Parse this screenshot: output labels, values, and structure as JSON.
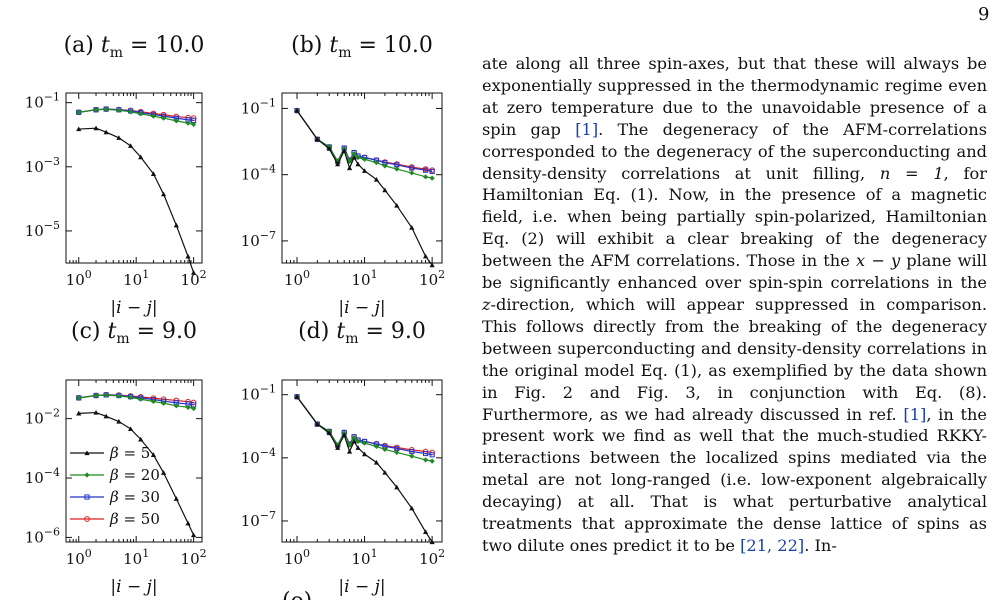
{
  "page_number": "9",
  "figure_caption_fragment": "(e)",
  "panels": [
    {
      "id": "a",
      "title": "(a) t_m = 10.0",
      "label": "(a)",
      "param": "10.0",
      "yticks": [
        {
          "exp": "-1"
        },
        {
          "exp": "-3"
        },
        {
          "exp": "-5"
        }
      ]
    },
    {
      "id": "b",
      "title": "(b) t_m = 10.0",
      "label": "(b)",
      "param": "10.0",
      "yticks": [
        {
          "exp": "-1"
        },
        {
          "exp": "-4"
        },
        {
          "exp": "-7"
        }
      ]
    },
    {
      "id": "c",
      "title": "(c) t_m = 9.0",
      "label": "(c)",
      "param": "9.0",
      "yticks": [
        {
          "exp": "-2"
        },
        {
          "exp": "-4"
        },
        {
          "exp": "-6"
        }
      ]
    },
    {
      "id": "d",
      "title": "(d) t_m = 9.0",
      "label": "(d)",
      "param": "9.0",
      "yticks": [
        {
          "exp": "-1"
        },
        {
          "exp": "-4"
        },
        {
          "exp": "-7"
        }
      ]
    }
  ],
  "xaxis_label": "|i − j|",
  "xtick_exps": [
    "0",
    "1",
    "2"
  ],
  "legend": [
    {
      "label": "β = 5",
      "beta": "5",
      "color": "#111111",
      "marker": "triangle"
    },
    {
      "label": "β = 20",
      "beta": "20",
      "color": "#1f8a1f",
      "marker": "diamond"
    },
    {
      "label": "β = 30",
      "beta": "30",
      "color": "#2233cc",
      "marker": "square"
    },
    {
      "label": "β = 50",
      "beta": "50",
      "color": "#dd2222",
      "marker": "circle"
    }
  ],
  "body_text": {
    "s1": "ate along all three spin-axes, but that these will always be exponentially suppressed in the thermodynamic regime even at zero temperature due to the unavoidable presence of a spin gap ",
    "c1": "[1]",
    "s2": ". The degeneracy of the AFM-correlations corresponded to the degeneracy of the superconducting and density-density correlations at unit filling, ",
    "s3": "n = 1",
    "s4": ", for Hamiltonian Eq. (1). Now, in the presence of a magnetic field, i.e. when being partially spin-polarized, Hamiltonian Eq. (2) will exhibit a clear breaking of the degeneracy between the AFM correlations. Those in the ",
    "s5": "x − y",
    "s6": " plane will be significantly enhanced over spin-spin correlations in the ",
    "s7": "z",
    "s8": "-direction, which will appear suppressed in comparison. This follows directly from the breaking of the degeneracy between superconducting and density-density correlations in the original model Eq. (1), as exemplified by the data shown in Fig. 2 and Fig. 3, in conjunction with Eq. (8). Furthermore, as we had already discussed in ref. ",
    "c2": "[1]",
    "s9": ", in the present work we find as well that the much-studied RKKY-interactions between the localized spins mediated via the metal are not long-ranged (i.e. low-exponent algebraically decaying) at all. That is what perturbative analytical treatments that approximate the dense lattice of spins as two dilute ones predict it to be ",
    "c3": "[21, 22]",
    "s10": ". In-"
  },
  "chart_data": [
    {
      "panel": "a",
      "type": "line",
      "title": "(a) t_m = 10.0",
      "xlabel": "|i − j|",
      "x_scale": "log",
      "y_scale": "log",
      "xlim": [
        0.6,
        140
      ],
      "ylim": [
        1e-06,
        0.2
      ],
      "yticks": [
        0.1,
        0.001,
        1e-05
      ],
      "grid": false,
      "x": [
        1,
        2,
        3,
        5,
        8,
        12,
        20,
        30,
        50,
        80,
        100
      ],
      "series": [
        {
          "name": "β = 5",
          "values": [
            0.015,
            0.016,
            0.012,
            0.008,
            0.0045,
            0.002,
            0.0006,
            0.00014,
            1.5e-05,
            1.6e-06,
            5e-07
          ]
        },
        {
          "name": "β = 20",
          "values": [
            0.05,
            0.06,
            0.062,
            0.058,
            0.052,
            0.045,
            0.038,
            0.033,
            0.027,
            0.023,
            0.021
          ]
        },
        {
          "name": "β = 30",
          "values": [
            0.05,
            0.06,
            0.063,
            0.06,
            0.055,
            0.049,
            0.043,
            0.038,
            0.033,
            0.029,
            0.028
          ]
        },
        {
          "name": "β = 50",
          "values": [
            0.05,
            0.06,
            0.063,
            0.061,
            0.057,
            0.052,
            0.046,
            0.042,
            0.037,
            0.034,
            0.033
          ]
        }
      ]
    },
    {
      "panel": "b",
      "type": "line",
      "title": "(b) t_m = 10.0",
      "xlabel": "|i − j|",
      "x_scale": "log",
      "y_scale": "log",
      "xlim": [
        0.6,
        140
      ],
      "ylim": [
        1e-08,
        0.5
      ],
      "yticks": [
        0.1,
        0.0001,
        1e-07
      ],
      "grid": false,
      "x": [
        1,
        2,
        3,
        4,
        5,
        6,
        7,
        8,
        10,
        15,
        20,
        30,
        50,
        80,
        100
      ],
      "series": [
        {
          "name": "β = 5",
          "values": [
            0.08,
            0.004,
            0.0015,
            0.0003,
            0.0012,
            0.0002,
            0.0006,
            0.0003,
            0.00015,
            6e-05,
            2e-05,
            4e-06,
            4e-07,
            2e-08,
            8e-09
          ]
        },
        {
          "name": "β = 20",
          "values": [
            0.08,
            0.004,
            0.0018,
            0.0004,
            0.0015,
            0.0004,
            0.0009,
            0.0006,
            0.0005,
            0.00035,
            0.00025,
            0.00018,
            0.00012,
            8e-05,
            7e-05
          ]
        },
        {
          "name": "β = 30",
          "values": [
            0.08,
            0.004,
            0.0018,
            0.0004,
            0.0016,
            0.00045,
            0.001,
            0.0007,
            0.0006,
            0.00045,
            0.00035,
            0.00028,
            0.0002,
            0.00016,
            0.00014
          ]
        },
        {
          "name": "β = 50",
          "values": [
            0.08,
            0.004,
            0.0018,
            0.0004,
            0.0016,
            0.00045,
            0.001,
            0.0007,
            0.0006,
            0.00046,
            0.00037,
            0.0003,
            0.00022,
            0.00018,
            0.00016
          ]
        }
      ]
    },
    {
      "panel": "c",
      "type": "line",
      "title": "(c) t_m = 9.0",
      "xlabel": "|i − j|",
      "x_scale": "log",
      "y_scale": "log",
      "xlim": [
        0.6,
        140
      ],
      "ylim": [
        7e-07,
        0.2
      ],
      "yticks": [
        0.01,
        0.0001,
        1e-06
      ],
      "grid": false,
      "x": [
        1,
        2,
        3,
        5,
        8,
        12,
        20,
        30,
        50,
        80,
        100
      ],
      "series": [
        {
          "name": "β = 5",
          "values": [
            0.015,
            0.016,
            0.012,
            0.008,
            0.0045,
            0.002,
            0.0006,
            0.00015,
            2e-05,
            3e-06,
            1.2e-06
          ]
        },
        {
          "name": "β = 20",
          "values": [
            0.05,
            0.06,
            0.062,
            0.058,
            0.052,
            0.045,
            0.038,
            0.033,
            0.027,
            0.024,
            0.022
          ]
        },
        {
          "name": "β = 30",
          "values": [
            0.05,
            0.06,
            0.063,
            0.06,
            0.055,
            0.05,
            0.044,
            0.039,
            0.034,
            0.031,
            0.029
          ]
        },
        {
          "name": "β = 50",
          "values": [
            0.05,
            0.06,
            0.064,
            0.062,
            0.058,
            0.054,
            0.049,
            0.045,
            0.041,
            0.037,
            0.035
          ]
        }
      ]
    },
    {
      "panel": "d",
      "type": "line",
      "title": "(d) t_m = 9.0",
      "xlabel": "|i − j|",
      "x_scale": "log",
      "y_scale": "log",
      "xlim": [
        0.6,
        140
      ],
      "ylim": [
        1e-08,
        0.5
      ],
      "yticks": [
        0.1,
        0.0001,
        1e-07
      ],
      "grid": false,
      "x": [
        1,
        2,
        3,
        4,
        5,
        6,
        7,
        8,
        10,
        15,
        20,
        30,
        50,
        80,
        100
      ],
      "series": [
        {
          "name": "β = 5",
          "values": [
            0.08,
            0.004,
            0.0015,
            0.0003,
            0.0012,
            0.0002,
            0.0006,
            0.0003,
            0.00015,
            6e-05,
            2e-05,
            4e-06,
            4e-07,
            3e-08,
            1e-08
          ]
        },
        {
          "name": "β = 20",
          "values": [
            0.08,
            0.004,
            0.0018,
            0.0004,
            0.0015,
            0.0004,
            0.0009,
            0.0006,
            0.0005,
            0.00035,
            0.00025,
            0.00018,
            0.00012,
            8e-05,
            7e-05
          ]
        },
        {
          "name": "β = 30",
          "values": [
            0.08,
            0.004,
            0.0018,
            0.0004,
            0.0016,
            0.00045,
            0.001,
            0.0007,
            0.0006,
            0.00045,
            0.00035,
            0.00028,
            0.0002,
            0.00016,
            0.00014
          ]
        },
        {
          "name": "β = 50",
          "values": [
            0.08,
            0.004,
            0.0018,
            0.0004,
            0.0016,
            0.00045,
            0.001,
            0.0007,
            0.0006,
            0.00047,
            0.00038,
            0.00031,
            0.00024,
            0.0002,
            0.00018
          ]
        }
      ]
    }
  ]
}
